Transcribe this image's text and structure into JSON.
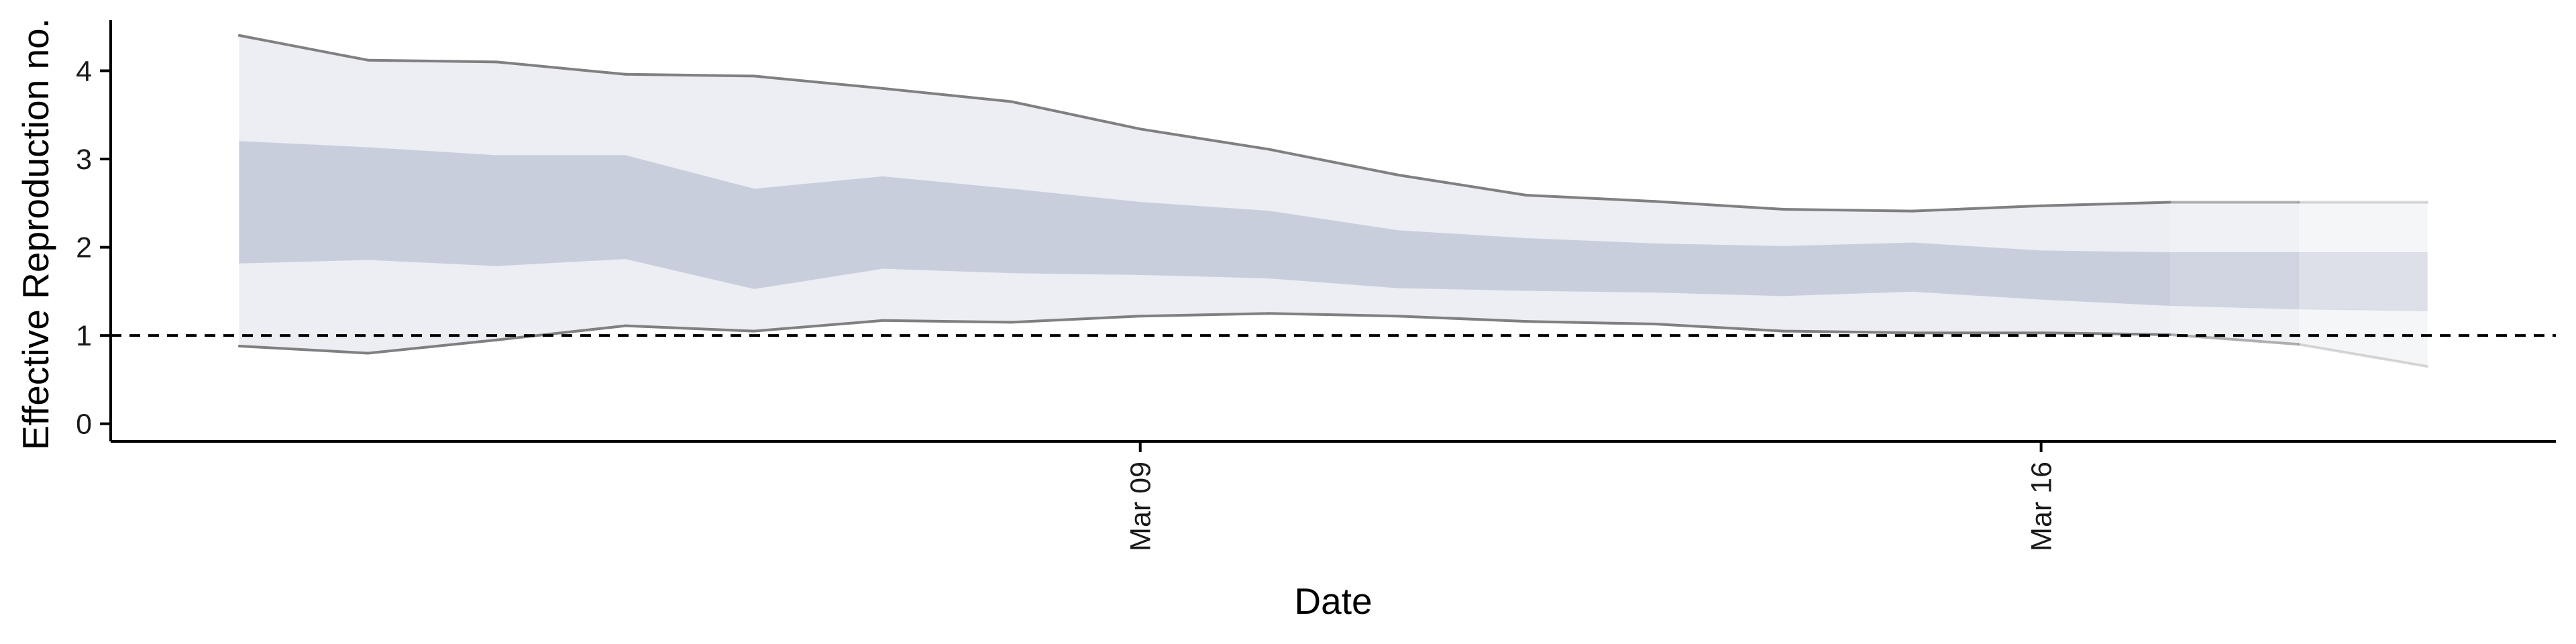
{
  "chart_data": {
    "type": "area",
    "title": "",
    "xlabel": "Date",
    "ylabel": "Effective Reproduction no.",
    "x": [
      "2020-03-02",
      "2020-03-03",
      "2020-03-04",
      "2020-03-05",
      "2020-03-06",
      "2020-03-07",
      "2020-03-08",
      "2020-03-09",
      "2020-03-10",
      "2020-03-11",
      "2020-03-12",
      "2020-03-13",
      "2020-03-14",
      "2020-03-15",
      "2020-03-16",
      "2020-03-17",
      "2020-03-18",
      "2020-03-19"
    ],
    "x_ticks": [
      {
        "date": "2020-03-09",
        "label": "Mar 09"
      },
      {
        "date": "2020-03-16",
        "label": "Mar 16"
      }
    ],
    "xlim": [
      "2020-03-01",
      "2020-03-20"
    ],
    "ylim": [
      -0.2,
      4.65
    ],
    "y_ticks": [
      0,
      1,
      2,
      3,
      4
    ],
    "series": [
      {
        "kind": "band",
        "color": "#eceef3",
        "lower": [
          0.88,
          0.8,
          0.95,
          1.11,
          1.05,
          1.17,
          1.15,
          1.22,
          1.25,
          1.22,
          1.16,
          1.13,
          1.05,
          1.03,
          1.03,
          1.01,
          0.9,
          0.65
        ],
        "upper": [
          4.4,
          4.12,
          4.1,
          3.96,
          3.94,
          3.8,
          3.65,
          3.34,
          3.11,
          2.82,
          2.59,
          2.52,
          2.43,
          2.41,
          2.47,
          2.51,
          2.51,
          2.51
        ]
      },
      {
        "kind": "band",
        "color": "#c9cedd",
        "lower": [
          1.82,
          1.86,
          1.79,
          1.87,
          1.53,
          1.76,
          1.71,
          1.69,
          1.65,
          1.54,
          1.51,
          1.49,
          1.45,
          1.5,
          1.41,
          1.34,
          1.3,
          1.28
        ],
        "upper": [
          3.2,
          3.13,
          3.04,
          3.04,
          2.66,
          2.8,
          2.66,
          2.51,
          2.41,
          2.19,
          2.1,
          2.04,
          2.01,
          2.05,
          1.96,
          1.94,
          1.94,
          1.94
        ]
      }
    ],
    "reference_line": {
      "y": 1,
      "style": "dashed",
      "color": "#000000"
    },
    "grid": false,
    "legend": "none",
    "colors": {
      "outline": "#808080",
      "axis": "#000000"
    }
  }
}
